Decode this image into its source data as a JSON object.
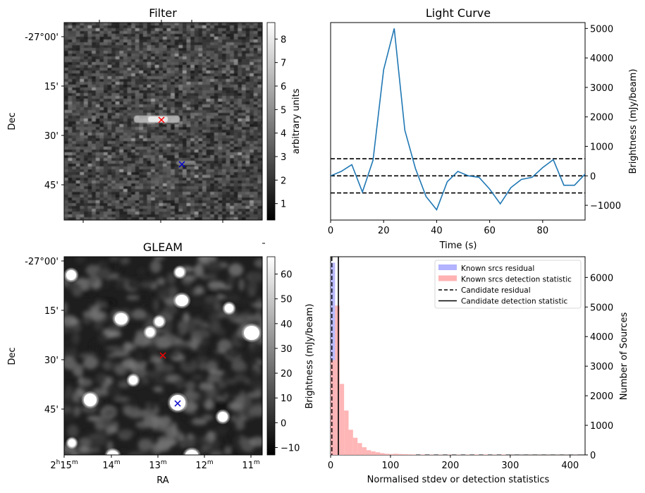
{
  "chart_data": [
    {
      "type": "heatmap",
      "title": "Filter",
      "ylabel": "Dec",
      "ytick_labels": [
        "-27°00'",
        "15'",
        "30'",
        "45'"
      ],
      "colorbar": {
        "label": "arbitrary units",
        "ticks": [
          "1",
          "2",
          "3",
          "4",
          "5",
          "6",
          "7",
          "8"
        ],
        "range": [
          0.3,
          8.7
        ],
        "cmap": "gray"
      },
      "markers": [
        {
          "symbol": "x",
          "color": "#ff0000"
        },
        {
          "symbol": "x",
          "color": "#0000cc"
        }
      ]
    },
    {
      "type": "line",
      "title": "Light Curve",
      "xlabel": "Time (s)",
      "ylabel": "Brightness (mJy/beam)",
      "xlim": [
        0,
        96
      ],
      "ylim": [
        -1500,
        5200
      ],
      "xticks": [
        0,
        20,
        40,
        60,
        80
      ],
      "yticks": [
        -1000,
        0,
        1000,
        2000,
        3000,
        4000,
        5000
      ],
      "series": [
        {
          "color": "#1f77b4",
          "x": [
            0,
            4,
            8,
            12,
            16,
            20,
            24,
            28,
            32,
            36,
            40,
            44,
            48,
            52,
            56,
            60,
            64,
            68,
            72,
            76,
            80,
            84,
            88,
            92,
            96
          ],
          "y": [
            0,
            150,
            380,
            -550,
            530,
            3600,
            5000,
            1550,
            250,
            -700,
            -1150,
            -200,
            150,
            0,
            -50,
            -450,
            -950,
            -400,
            -120,
            -50,
            280,
            550,
            -320,
            -320,
            60
          ]
        }
      ],
      "hlines": [
        {
          "y": 580,
          "style": "dashed"
        },
        {
          "y": 0,
          "style": "dashed"
        },
        {
          "y": -580,
          "style": "dashed"
        }
      ]
    },
    {
      "type": "heatmap",
      "title": "GLEAM",
      "xlabel": "RA",
      "ylabel": "Dec",
      "xtick_labels": [
        {
          "h": "2",
          "m": "15"
        },
        {
          "h": "",
          "m": "14"
        },
        {
          "h": "",
          "m": "13"
        },
        {
          "h": "",
          "m": "12"
        },
        {
          "h": "",
          "m": "11"
        }
      ],
      "ytick_labels": [
        "-27°00'",
        "15'",
        "30'",
        "45'"
      ],
      "colorbar": {
        "label": "Brightness (mJy/beam)",
        "ticks": [
          "−10",
          "0",
          "10",
          "20",
          "30",
          "40",
          "50",
          "60"
        ],
        "range": [
          -13,
          67
        ],
        "cmap": "gray"
      },
      "markers": [
        {
          "symbol": "x",
          "color": "#ff0000"
        },
        {
          "symbol": "x",
          "color": "#0000cc"
        }
      ]
    },
    {
      "type": "bar",
      "xlabel": "Normalised stdev or detection statistics",
      "ylabel": "Number of Sources",
      "xlim": [
        0,
        425
      ],
      "ylim": [
        0,
        6700
      ],
      "xticks": [
        0,
        100,
        200,
        300,
        400
      ],
      "yticks": [
        0,
        1000,
        2000,
        3000,
        4000,
        5000,
        6000
      ],
      "bin_width": 7.5,
      "series": [
        {
          "name": "Known srcs residual",
          "color": "#b2b2ff",
          "bin_starts": [
            0,
            7.5,
            15
          ],
          "counts": [
            6500,
            350,
            20
          ]
        },
        {
          "name": "Known srcs detection statistic",
          "color": "#ffb2b2",
          "bin_starts": [
            0,
            7.5,
            15,
            22.5,
            30,
            37.5,
            45,
            52.5,
            60,
            67.5,
            75,
            82.5,
            90,
            97.5,
            105,
            112.5,
            120,
            127.5,
            135,
            150,
            165,
            180,
            195,
            210,
            225,
            240,
            255,
            270,
            285,
            300,
            315,
            330,
            345,
            360,
            375,
            390,
            405
          ],
          "counts": [
            3200,
            5050,
            2400,
            1500,
            850,
            580,
            400,
            260,
            160,
            120,
            90,
            60,
            40,
            30,
            40,
            30,
            25,
            20,
            15,
            15,
            10,
            10,
            10,
            10,
            10,
            15,
            15,
            10,
            15,
            5,
            5,
            5,
            5,
            5,
            5,
            5,
            5
          ]
        }
      ],
      "vlines": [
        {
          "name": "Candidate residual",
          "x": 2,
          "style": "dashed"
        },
        {
          "name": "Candidate detection statistic",
          "x": 13,
          "style": "solid"
        }
      ],
      "legend_position": "top-right"
    }
  ]
}
